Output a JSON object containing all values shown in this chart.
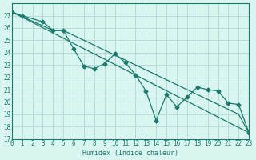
{
  "xlabel": "Humidex (Indice chaleur)",
  "bg_color": "#d8f5f0",
  "grid_color": "#b8ddd8",
  "line_color": "#1a7a6e",
  "xlim": [
    0,
    23
  ],
  "ylim": [
    17,
    28
  ],
  "yticks": [
    17,
    18,
    19,
    20,
    21,
    22,
    23,
    24,
    25,
    26,
    27
  ],
  "xticks": [
    0,
    1,
    2,
    3,
    4,
    5,
    6,
    7,
    8,
    9,
    10,
    11,
    12,
    13,
    14,
    15,
    16,
    17,
    18,
    19,
    20,
    21,
    22,
    23
  ],
  "series_main_x": [
    0,
    1,
    3,
    4,
    5,
    6,
    7,
    8,
    9,
    10,
    11,
    12,
    13,
    14,
    15,
    16,
    17,
    18,
    19,
    20,
    21,
    22,
    23
  ],
  "series_main_y": [
    27.3,
    27.0,
    26.5,
    25.8,
    25.8,
    24.3,
    22.9,
    22.7,
    23.1,
    23.9,
    23.2,
    22.2,
    20.9,
    18.5,
    20.6,
    19.6,
    20.4,
    21.2,
    21.0,
    20.9,
    19.9,
    19.8,
    17.5
  ],
  "line1_x": [
    0,
    23
  ],
  "line1_y": [
    27.3,
    17.5
  ],
  "line2_x": [
    0,
    4,
    5,
    22,
    23
  ],
  "line2_y": [
    27.3,
    25.8,
    25.8,
    19.0,
    17.5
  ]
}
